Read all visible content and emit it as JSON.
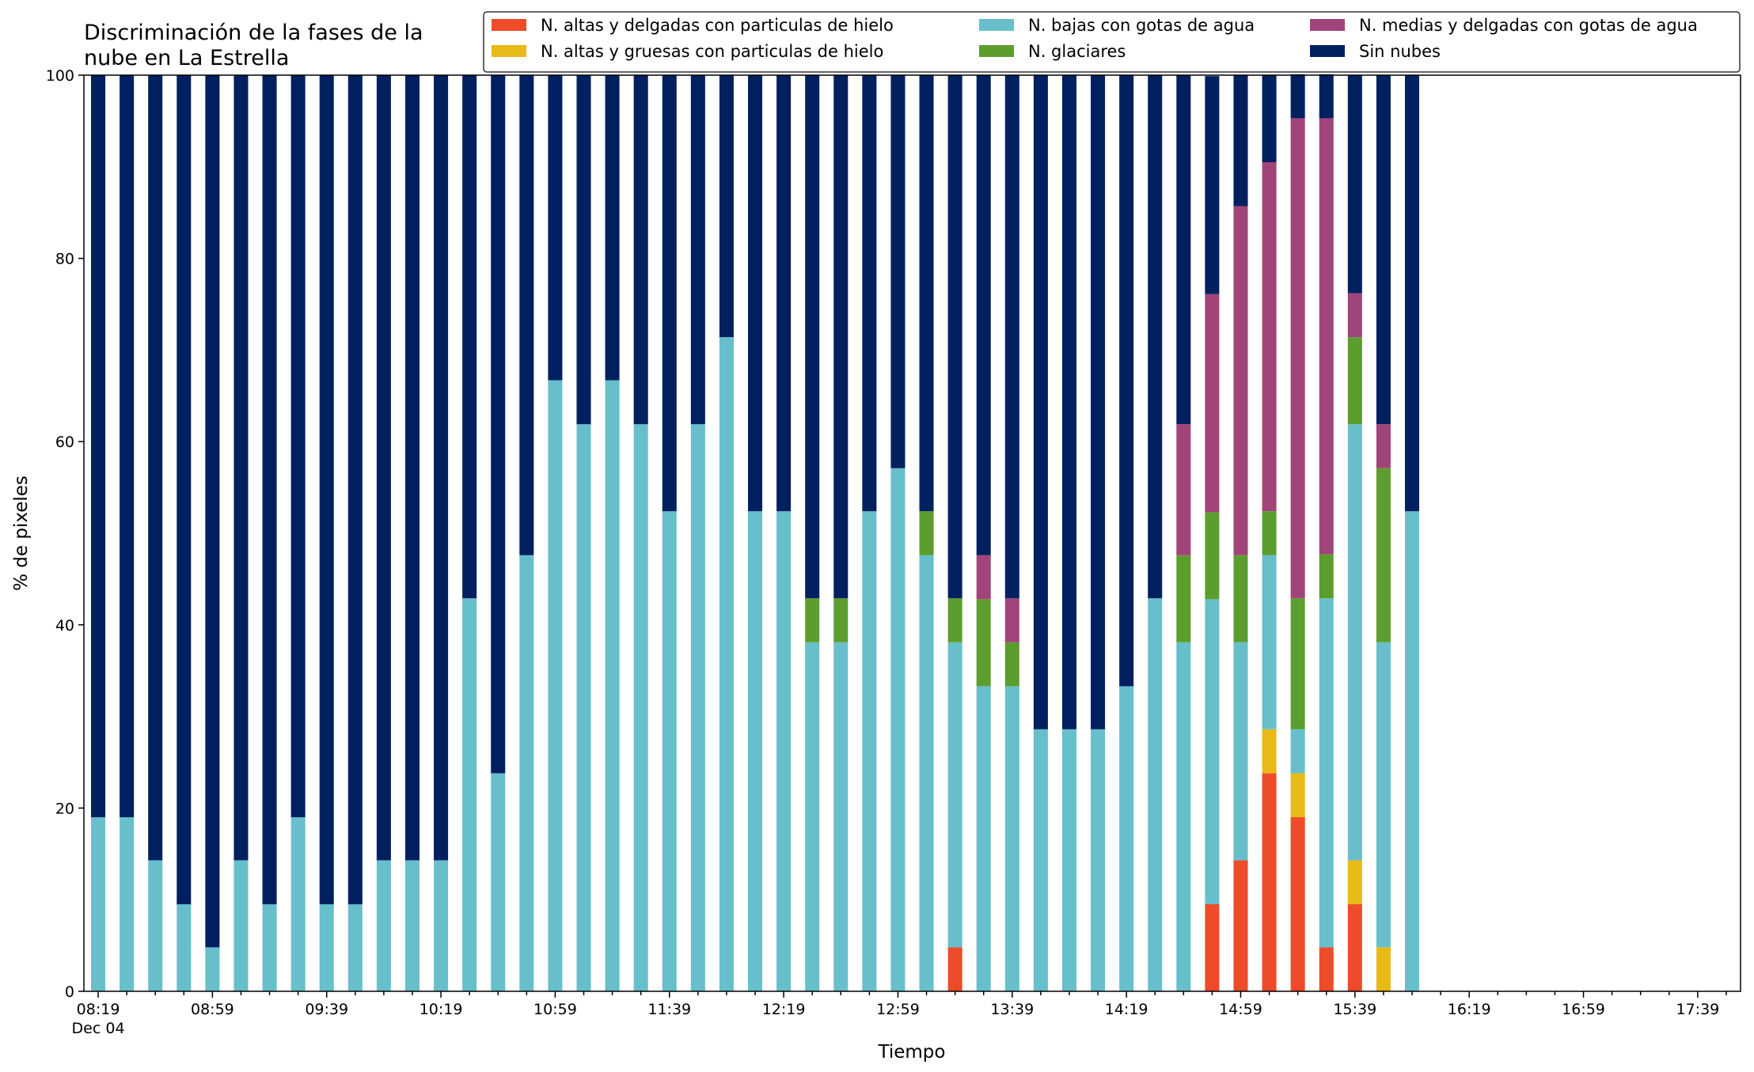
{
  "chart_data": {
    "type": "bar",
    "stacked": true,
    "title_lines": [
      "Discriminación de la fases de la",
      "nube en La Estrella"
    ],
    "xlabel": "Tiempo",
    "ylabel": "% de pixeles",
    "ylim": [
      0,
      100
    ],
    "yticks": [
      0,
      20,
      40,
      60,
      80,
      100
    ],
    "grid": false,
    "legend_position": "top-right",
    "x_interval_minutes": 10,
    "x_start": "08:19",
    "x_end": "17:49",
    "x_major_ticks": [
      {
        "time": "08:19",
        "label": "08:19",
        "sublabel": "Dec 04"
      },
      {
        "time": "08:59",
        "label": "08:59"
      },
      {
        "time": "09:39",
        "label": "09:39"
      },
      {
        "time": "10:19",
        "label": "10:19"
      },
      {
        "time": "10:59",
        "label": "10:59"
      },
      {
        "time": "11:39",
        "label": "11:39"
      },
      {
        "time": "12:19",
        "label": "12:19"
      },
      {
        "time": "12:59",
        "label": "12:59"
      },
      {
        "time": "13:39",
        "label": "13:39"
      },
      {
        "time": "14:19",
        "label": "14:19"
      },
      {
        "time": "14:59",
        "label": "14:59"
      },
      {
        "time": "15:39",
        "label": "15:39"
      },
      {
        "time": "16:19",
        "label": "16:19"
      },
      {
        "time": "16:59",
        "label": "16:59"
      },
      {
        "time": "17:39",
        "label": "17:39"
      }
    ],
    "x": [
      "08:19",
      "08:29",
      "08:39",
      "08:49",
      "08:59",
      "09:09",
      "09:19",
      "09:29",
      "09:39",
      "09:49",
      "09:59",
      "10:09",
      "10:19",
      "10:29",
      "10:39",
      "10:49",
      "10:59",
      "11:09",
      "11:19",
      "11:29",
      "11:39",
      "11:49",
      "11:59",
      "12:09",
      "12:19",
      "12:29",
      "12:39",
      "12:49",
      "12:59",
      "13:09",
      "13:19",
      "13:29",
      "13:39",
      "13:49",
      "13:59",
      "14:09",
      "14:19",
      "14:29",
      "14:39",
      "14:49",
      "14:59",
      "15:09",
      "15:19",
      "15:29",
      "15:39",
      "15:49",
      "15:59"
    ],
    "series": [
      {
        "name": "N. altas y delgadas con particulas de hielo",
        "color": "#ee4b2b",
        "values": [
          0,
          0,
          0,
          0,
          0,
          0,
          0,
          0,
          0,
          0,
          0,
          0,
          0,
          0,
          0,
          0,
          0,
          0,
          0,
          0,
          0,
          0,
          0,
          0,
          0,
          0,
          0,
          0,
          0,
          0,
          4.8,
          0,
          0,
          0,
          0,
          0,
          0,
          0,
          0,
          9.5,
          14.3,
          23.8,
          19.0,
          4.8,
          9.5,
          0,
          0
        ]
      },
      {
        "name": "N. altas y gruesas con particulas de hielo",
        "color": "#e8b917",
        "values": [
          0,
          0,
          0,
          0,
          0,
          0,
          0,
          0,
          0,
          0,
          0,
          0,
          0,
          0,
          0,
          0,
          0,
          0,
          0,
          0,
          0,
          0,
          0,
          0,
          0,
          0,
          0,
          0,
          0,
          0,
          0,
          0,
          0,
          0,
          0,
          0,
          0,
          0,
          0,
          0,
          0,
          4.8,
          4.8,
          0,
          4.8,
          4.8,
          0
        ]
      },
      {
        "name": "N. bajas con gotas de agua",
        "color": "#67bfcb",
        "values": [
          19.0,
          19.0,
          14.3,
          9.5,
          4.8,
          14.3,
          9.5,
          19.0,
          9.5,
          9.5,
          14.3,
          14.3,
          14.3,
          42.9,
          23.8,
          47.6,
          66.7,
          61.9,
          66.7,
          61.9,
          52.4,
          61.9,
          71.4,
          52.4,
          52.4,
          38.1,
          38.1,
          52.4,
          57.1,
          47.6,
          33.3,
          33.3,
          33.3,
          28.6,
          28.6,
          28.6,
          33.3,
          42.9,
          38.1,
          33.3,
          23.8,
          19.0,
          4.8,
          38.1,
          47.6,
          33.3,
          52.4
        ]
      },
      {
        "name": "N. glaciares",
        "color": "#5c9e2d",
        "values": [
          0,
          0,
          0,
          0,
          0,
          0,
          0,
          0,
          0,
          0,
          0,
          0,
          0,
          0,
          0,
          0,
          0,
          0,
          0,
          0,
          0,
          0,
          0,
          0,
          0,
          4.8,
          4.8,
          0,
          0,
          4.8,
          4.8,
          9.5,
          4.8,
          0,
          0,
          0,
          0,
          0,
          9.5,
          9.5,
          9.5,
          4.8,
          14.3,
          4.8,
          9.5,
          19.0,
          0
        ]
      },
      {
        "name": "N. medias y delgadas con gotas de agua",
        "color": "#a1447a",
        "values": [
          0,
          0,
          0,
          0,
          0,
          0,
          0,
          0,
          0,
          0,
          0,
          0,
          0,
          0,
          0,
          0,
          0,
          0,
          0,
          0,
          0,
          0,
          0,
          0,
          0,
          0,
          0,
          0,
          0,
          0,
          0,
          4.8,
          4.8,
          0,
          0,
          0,
          0,
          0,
          14.3,
          23.8,
          38.1,
          38.1,
          52.4,
          47.6,
          4.8,
          4.8,
          0
        ]
      },
      {
        "name": "Sin nubes",
        "color": "#002060",
        "values": [
          81.0,
          81.0,
          85.7,
          90.5,
          95.2,
          85.7,
          90.5,
          81.0,
          90.5,
          90.5,
          85.7,
          85.7,
          85.7,
          57.1,
          76.2,
          52.4,
          33.3,
          38.1,
          33.3,
          38.1,
          47.6,
          38.1,
          28.6,
          47.6,
          47.6,
          57.1,
          57.1,
          47.6,
          42.9,
          47.6,
          57.1,
          52.4,
          57.1,
          71.4,
          71.4,
          71.4,
          66.7,
          57.1,
          38.1,
          23.8,
          14.3,
          9.5,
          4.8,
          4.8,
          23.8,
          38.1,
          47.6
        ]
      }
    ]
  }
}
